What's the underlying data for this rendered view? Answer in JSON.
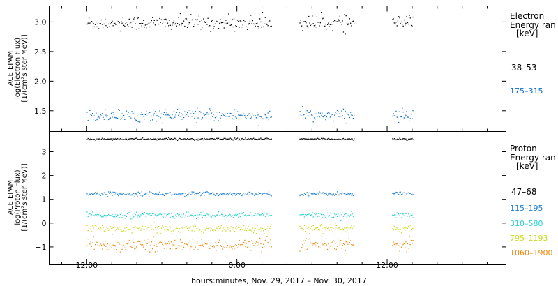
{
  "chart_data": [
    {
      "type": "scatter",
      "panel": "electron",
      "ylabel_lines": [
        "ACE EPAM",
        "log(Electron Flux)",
        "[1/(cm²s ster MeV)]"
      ],
      "yticks": [
        "1.5",
        "2.0",
        "2.5",
        "3.0"
      ],
      "ylim": [
        1.15,
        3.27
      ],
      "legend_title_lines": [
        "Electron",
        "Energy ran",
        "[keV]"
      ],
      "series": [
        {
          "name": "38–53",
          "color": "#000000",
          "mean": 2.99,
          "spread": 0.06,
          "stats_note": "values fluctuate ~2.9–3.1 log units"
        },
        {
          "name": "175–315",
          "color": "#0e6fc9",
          "mean": 1.43,
          "spread": 0.05,
          "stats_note": "values fluctuate ~1.35–1.6 log units"
        }
      ]
    },
    {
      "type": "scatter",
      "panel": "proton",
      "ylabel_lines": [
        "ACE EPAM",
        "log(Proton Flux)",
        "[1/(cm²s ster MeV)]"
      ],
      "yticks": [
        "−1",
        "0",
        "1",
        "2",
        "3"
      ],
      "ylim": [
        -1.75,
        3.85
      ],
      "legend_title_lines": [
        "Proton",
        "Energy ran",
        "[keV]"
      ],
      "series": [
        {
          "name": "47–68",
          "color": "#000000",
          "mean": 3.55,
          "spread": 0.02
        },
        {
          "name": "115–195",
          "color": "#1f7fd1",
          "mean": 1.25,
          "spread": 0.04
        },
        {
          "name": "310–580",
          "color": "#23d3d0",
          "mean": 0.35,
          "spread": 0.06
        },
        {
          "name": "795–1193",
          "color": "#c8dc1a",
          "mean": -0.22,
          "spread": 0.08
        },
        {
          "name": "1060–1900",
          "color": "#ee8a12",
          "mean": -0.9,
          "spread": 0.13
        }
      ]
    }
  ],
  "x_axis": {
    "xlabel": "hours:minutes, Nov. 29, 2017 – Nov. 30, 2017",
    "tick_labels": [
      "12:00",
      "0:00",
      "12:00"
    ],
    "data_segments_hours": [
      [
        0.0,
        14.8
      ],
      [
        17.0,
        21.4
      ],
      [
        24.4,
        26.1
      ]
    ],
    "x_range_hours": [
      -3.0,
      33.5
    ],
    "label_tick_hours": [
      0,
      12,
      24
    ]
  },
  "colors": {
    "axis": "#000000",
    "background": "#ffffff"
  }
}
